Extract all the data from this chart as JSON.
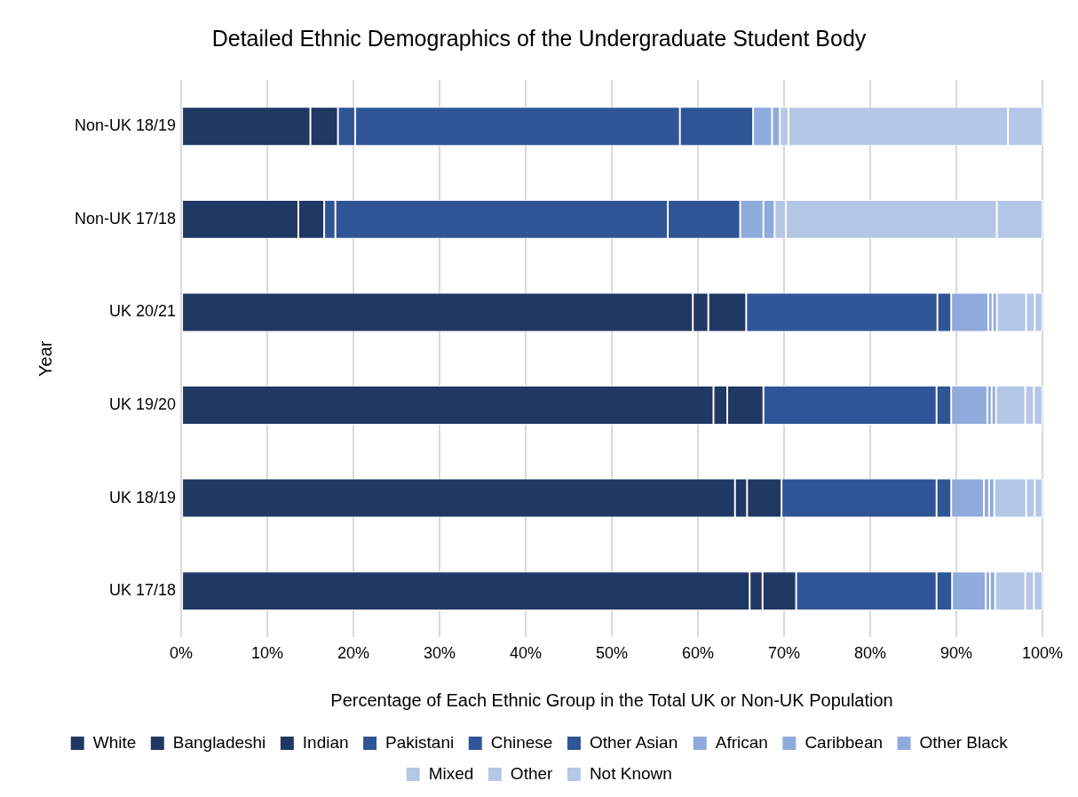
{
  "chart_data": {
    "type": "bar",
    "orientation": "horizontal",
    "stacked": true,
    "title": "Detailed Ethnic Demographics of the Undergraduate Student Body",
    "xlabel": "Percentage of Each Ethnic Group in the Total UK or Non-UK Population",
    "ylabel": "Year",
    "categories": [
      "Non-UK 18/19",
      "Non-UK 17/18",
      "UK 20/21",
      "UK 19/20",
      "UK 18/19",
      "UK 17/18"
    ],
    "series": [
      {
        "name": "White",
        "color": "#203864",
        "values": [
          15.0,
          13.6,
          59.4,
          61.8,
          64.3,
          66.0
        ]
      },
      {
        "name": "Bangladeshi",
        "color": "#203864",
        "values": [
          0,
          0,
          1.8,
          1.6,
          1.4,
          1.5
        ]
      },
      {
        "name": "Indian",
        "color": "#203864",
        "values": [
          3.2,
          3.0,
          4.4,
          4.2,
          4.0,
          3.9
        ]
      },
      {
        "name": "Pakistani",
        "color": "#2f5597",
        "values": [
          2.0,
          1.3,
          22.2,
          20.1,
          18.0,
          16.3
        ]
      },
      {
        "name": "Chinese",
        "color": "#2f5597",
        "values": [
          37.7,
          38.6,
          0,
          0,
          0,
          0
        ]
      },
      {
        "name": "Other Asian",
        "color": "#2f5597",
        "values": [
          8.5,
          8.4,
          1.6,
          1.7,
          1.7,
          1.8
        ]
      },
      {
        "name": "African",
        "color": "#8faadc",
        "values": [
          2.2,
          2.7,
          4.3,
          4.2,
          3.8,
          3.9
        ]
      },
      {
        "name": "Caribbean",
        "color": "#8faadc",
        "values": [
          0,
          0,
          0.5,
          0.5,
          0.6,
          0.5
        ]
      },
      {
        "name": "Other Black",
        "color": "#8faadc",
        "values": [
          0.9,
          1.3,
          0.5,
          0.5,
          0.6,
          0.6
        ]
      },
      {
        "name": "Mixed",
        "color": "#b4c7e7",
        "values": [
          1.0,
          1.3,
          3.4,
          3.4,
          3.7,
          3.5
        ]
      },
      {
        "name": "Other",
        "color": "#b4c7e7",
        "values": [
          25.5,
          24.5,
          1.0,
          1.0,
          1.0,
          1.0
        ]
      },
      {
        "name": "Not Known",
        "color": "#b4c7e7",
        "values": [
          4.0,
          5.3,
          0.9,
          1.0,
          0.9,
          1.0
        ]
      }
    ],
    "xlim": [
      0,
      100
    ],
    "xticks": [
      {
        "value": 0,
        "label": "0%"
      },
      {
        "value": 10,
        "label": "10%"
      },
      {
        "value": 20,
        "label": "20%"
      },
      {
        "value": 30,
        "label": "30%"
      },
      {
        "value": 40,
        "label": "40%"
      },
      {
        "value": 50,
        "label": "50%"
      },
      {
        "value": 60,
        "label": "60%"
      },
      {
        "value": 70,
        "label": "70%"
      },
      {
        "value": 80,
        "label": "80%"
      },
      {
        "value": 90,
        "label": "90%"
      },
      {
        "value": 100,
        "label": "100%"
      }
    ],
    "grid": "x",
    "legend": "bottom"
  }
}
